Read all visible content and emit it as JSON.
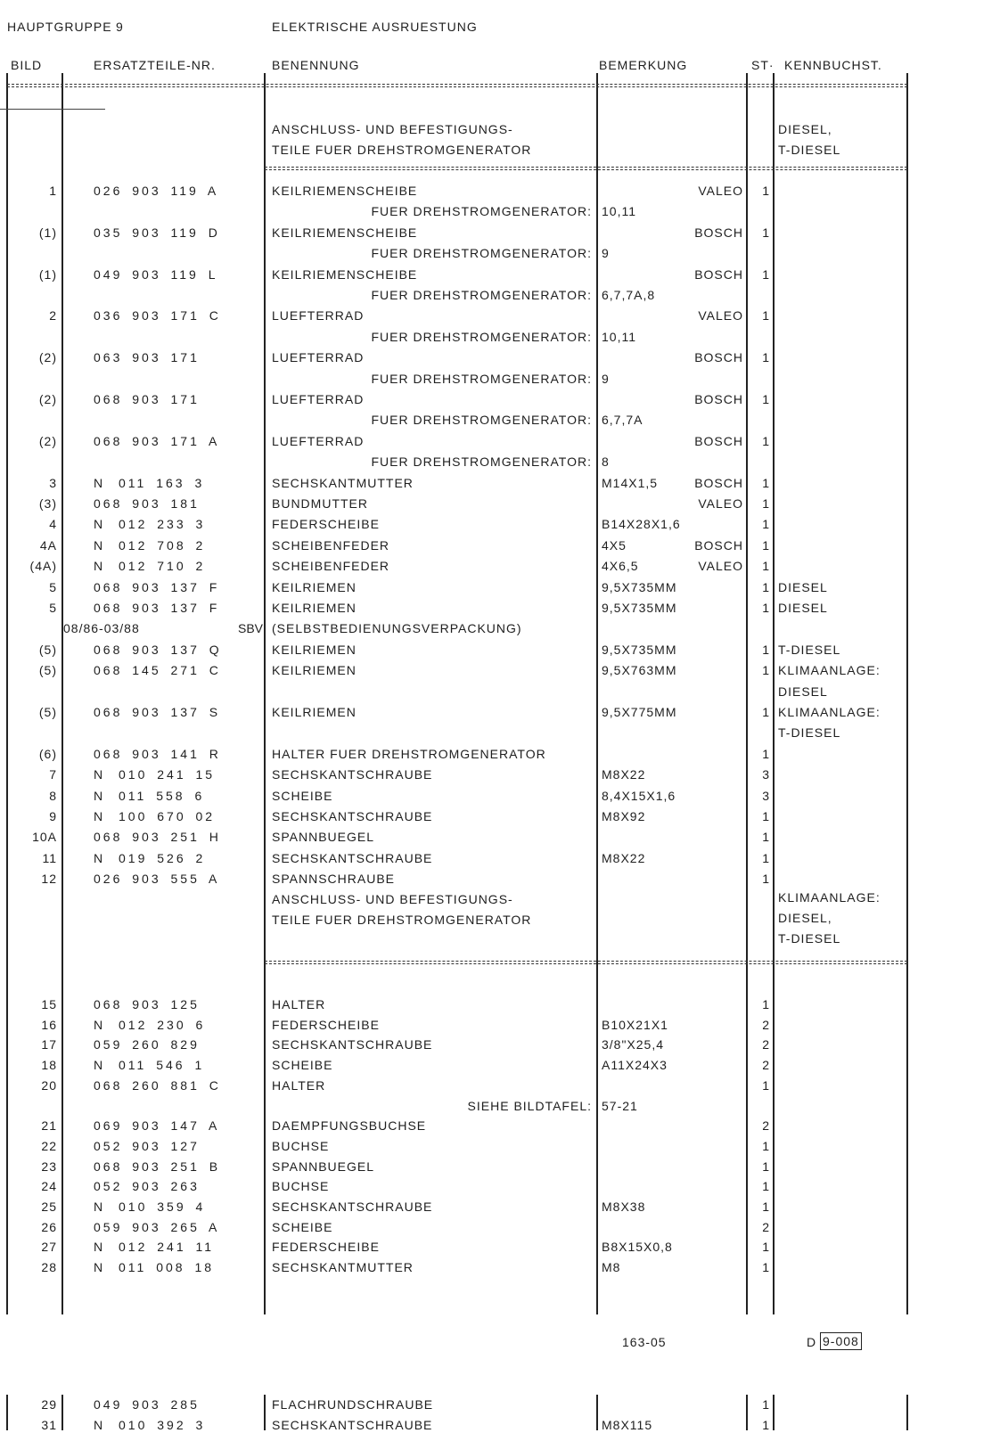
{
  "header": {
    "group_label": "HAUPTGRUPPE",
    "group_number": "9",
    "group_title": "ELEKTRISCHE AUSRUESTUNG"
  },
  "columns": {
    "bild": "BILD",
    "part": "ERSATZTEILE-NR.",
    "name": "BENENNUNG",
    "remark": "BEMERKUNG",
    "qty": "ST·",
    "code": "KENNBUCHST."
  },
  "sections": [
    {
      "title": [
        "ANSCHLUSS- UND BEFESTIGUNGS-",
        "TEILE FUER DREHSTROMGENERATOR"
      ],
      "codes": [
        "DIESEL,",
        "T-DIESEL"
      ]
    },
    {
      "title": [
        "ANSCHLUSS- UND BEFESTIGUNGS-",
        "TEILE FUER DREHSTROMGENERATOR"
      ],
      "codes": [
        "KLIMAANLAGE:",
        "DIESEL,",
        "T-DIESEL"
      ]
    }
  ],
  "rows_a": [
    {
      "bild": "1",
      "part": "026 903 119 A",
      "name": "KEILRIEMENSCHEIBE",
      "supplier": "VALEO",
      "qty": "1"
    },
    {
      "note": "FUER DREHSTROMGENERATOR:",
      "remark": "10,11"
    },
    {
      "bild": "(1)",
      "part": "035 903 119 D",
      "name": "KEILRIEMENSCHEIBE",
      "supplier": "BOSCH",
      "qty": "1"
    },
    {
      "note": "FUER DREHSTROMGENERATOR:",
      "remark": "9"
    },
    {
      "bild": "(1)",
      "part": "049 903 119 L",
      "name": "KEILRIEMENSCHEIBE",
      "supplier": "BOSCH",
      "qty": "1"
    },
    {
      "note": "FUER DREHSTROMGENERATOR:",
      "remark": "6,7,7A,8"
    },
    {
      "bild": "2",
      "part": "036 903 171 C",
      "name": "LUEFTERRAD",
      "supplier": "VALEO",
      "qty": "1"
    },
    {
      "note": "FUER DREHSTROMGENERATOR:",
      "remark": "10,11"
    },
    {
      "bild": "(2)",
      "part": "063 903 171",
      "name": "LUEFTERRAD",
      "supplier": "BOSCH",
      "qty": "1"
    },
    {
      "note": "FUER DREHSTROMGENERATOR:",
      "remark": "9"
    },
    {
      "bild": "(2)",
      "part": "068 903 171",
      "name": "LUEFTERRAD",
      "supplier": "BOSCH",
      "qty": "1"
    },
    {
      "note": "FUER DREHSTROMGENERATOR:",
      "remark": "6,7,7A"
    },
    {
      "bild": "(2)",
      "part": "068 903 171 A",
      "name": "LUEFTERRAD",
      "supplier": "BOSCH",
      "qty": "1"
    },
    {
      "note": "FUER DREHSTROMGENERATOR:",
      "remark": "8"
    },
    {
      "bild": "3",
      "prefix": "N",
      "part": "011 163 3",
      "name": "SECHSKANTMUTTER",
      "remark": "M14X1,5",
      "supplier": "BOSCH",
      "qty": "1"
    },
    {
      "bild": "(3)",
      "part": "068 903 181",
      "name": "BUNDMUTTER",
      "supplier": "VALEO",
      "qty": "1"
    },
    {
      "bild": "4",
      "prefix": "N",
      "part": "012 233 3",
      "name": "FEDERSCHEIBE",
      "remark": "B14X28X1,6",
      "qty": "1"
    },
    {
      "bild": "4A",
      "prefix": "N",
      "part": "012 708 2",
      "name": "SCHEIBENFEDER",
      "remark": "4X5",
      "supplier": "BOSCH",
      "qty": "1"
    },
    {
      "bild": "(4A)",
      "prefix": "N",
      "part": "012 710 2",
      "name": "SCHEIBENFEDER",
      "remark": "4X6,5",
      "supplier": "VALEO",
      "qty": "1"
    },
    {
      "bild": "5",
      "part": "068 903 137 F",
      "name": "KEILRIEMEN",
      "remark": "9,5X735MM",
      "qty": "1",
      "code": "DIESEL"
    },
    {
      "bild": "5",
      "part": "068 903 137 F",
      "name": "KEILRIEMEN",
      "remark": "9,5X735MM",
      "qty": "1",
      "code": "DIESEL"
    },
    {
      "date": "08/86-03/88",
      "flag": "SBV",
      "name": "(SELBSTBEDIENUNGSVERPACKUNG)"
    },
    {
      "bild": "(5)",
      "part": "068 903 137 Q",
      "name": "KEILRIEMEN",
      "remark": "9,5X735MM",
      "qty": "1",
      "code": "T-DIESEL"
    },
    {
      "bild": "(5)",
      "part": "068 145 271 C",
      "name": "KEILRIEMEN",
      "remark": "9,5X763MM",
      "qty": "1",
      "code": "KLIMAANLAGE:"
    },
    {
      "code": "DIESEL"
    },
    {
      "bild": "(5)",
      "part": "068 903 137 S",
      "name": "KEILRIEMEN",
      "remark": "9,5X775MM",
      "qty": "1",
      "code": "KLIMAANLAGE:"
    },
    {
      "code": "T-DIESEL"
    },
    {
      "bild": "(6)",
      "part": "068 903 141 R",
      "name": "HALTER FUER DREHSTROMGENERATOR",
      "qty": "1"
    },
    {
      "bild": "7",
      "prefix": "N",
      "part": "010 241 15",
      "name": "SECHSKANTSCHRAUBE",
      "remark": "M8X22",
      "qty": "3"
    },
    {
      "bild": "8",
      "prefix": "N",
      "part": "011 558 6",
      "name": "SCHEIBE",
      "remark": "8,4X15X1,6",
      "qty": "3"
    },
    {
      "bild": "9",
      "prefix": "N",
      "part": "100 670 02",
      "name": "SECHSKANTSCHRAUBE",
      "remark": "M8X92",
      "qty": "1"
    },
    {
      "bild": "10A",
      "part": "068 903 251 H",
      "name": "SPANNBUEGEL",
      "qty": "1"
    },
    {
      "bild": "11",
      "prefix": "N",
      "part": "019 526 2",
      "name": "SECHSKANTSCHRAUBE",
      "remark": "M8X22",
      "qty": "1"
    },
    {
      "bild": "12",
      "part": "026 903 555 A",
      "name": "SPANNSCHRAUBE",
      "qty": "1"
    }
  ],
  "rows_b": [
    {
      "bild": "15",
      "part": "068 903 125",
      "name": "HALTER",
      "qty": "1"
    },
    {
      "bild": "16",
      "prefix": "N",
      "part": "012 230 6",
      "name": "FEDERSCHEIBE",
      "remark": "B10X21X1",
      "qty": "2"
    },
    {
      "bild": "17",
      "part": "059 260 829",
      "name": "SECHSKANTSCHRAUBE",
      "remark": "3/8\"X25,4",
      "qty": "2"
    },
    {
      "bild": "18",
      "prefix": "N",
      "part": "011 546 1",
      "name": "SCHEIBE",
      "remark": "A11X24X3",
      "qty": "2"
    },
    {
      "bild": "20",
      "part": "068 260 881 C",
      "name": "HALTER",
      "qty": "1"
    },
    {
      "note": "SIEHE BILDTAFEL:",
      "remark": "57-21"
    },
    {
      "bild": "21",
      "part": "069 903 147 A",
      "name": "DAEMPFUNGSBUCHSE",
      "qty": "2"
    },
    {
      "bild": "22",
      "part": "052 903 127",
      "name": "BUCHSE",
      "qty": "1"
    },
    {
      "bild": "23",
      "part": "068 903 251 B",
      "name": "SPANNBUEGEL",
      "qty": "1"
    },
    {
      "bild": "24",
      "part": "052 903 263",
      "name": "BUCHSE",
      "qty": "1"
    },
    {
      "bild": "25",
      "prefix": "N",
      "part": "010 359 4",
      "name": "SECHSKANTSCHRAUBE",
      "remark": "M8X38",
      "qty": "1"
    },
    {
      "bild": "26",
      "part": "059 903 265 A",
      "name": "SCHEIBE",
      "qty": "2"
    },
    {
      "bild": "27",
      "prefix": "N",
      "part": "012 241 11",
      "name": "FEDERSCHEIBE",
      "remark": "B8X15X0,8",
      "qty": "1"
    },
    {
      "bild": "28",
      "prefix": "N",
      "part": "011 008 18",
      "name": "SECHSKANTMUTTER",
      "remark": "M8",
      "qty": "1"
    }
  ],
  "footer": {
    "page_ref": "163-05",
    "lang": "D",
    "page_code": "9-008"
  },
  "next_rows": [
    {
      "bild": "29",
      "part": "049 903 285",
      "name": "FLACHRUNDSCHRAUBE",
      "qty": "1"
    },
    {
      "bild": "31",
      "prefix": "N",
      "part": "010 392 3",
      "name": "SECHSKANTSCHRAUBE",
      "remark": "M8X115",
      "qty": "1"
    }
  ]
}
